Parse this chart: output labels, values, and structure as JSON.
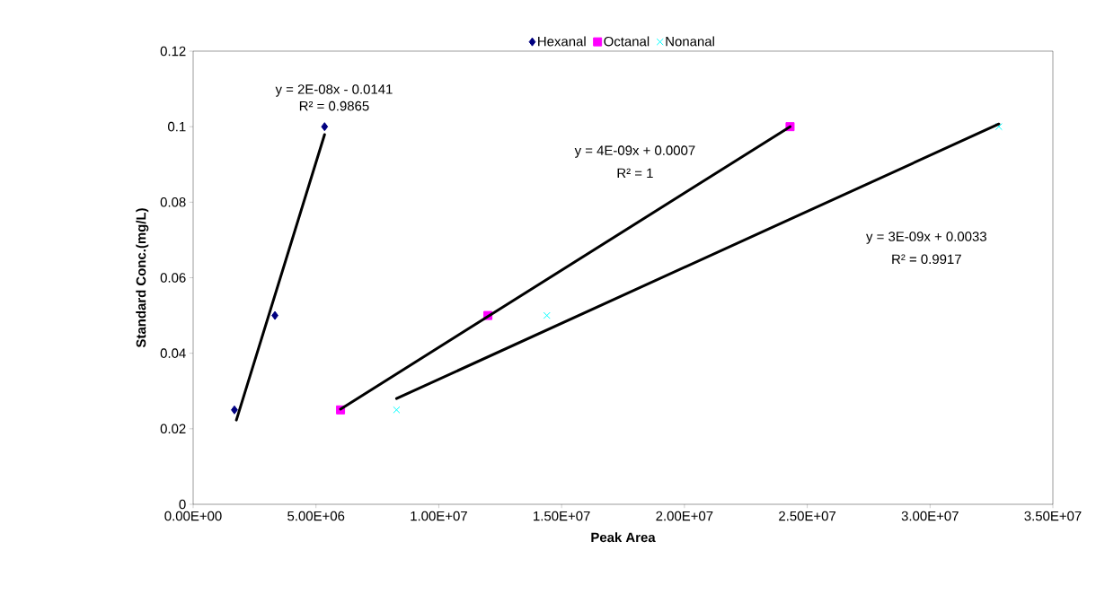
{
  "chart_data": {
    "type": "scatter",
    "xlabel": "Peak Area",
    "ylabel": "Standard  Conc.(mg/L)",
    "xlim": [
      0,
      35000000
    ],
    "ylim": [
      0,
      0.12
    ],
    "xticks": [
      {
        "value": 0,
        "label": "0.00E+00"
      },
      {
        "value": 5000000,
        "label": "5.00E+06"
      },
      {
        "value": 10000000,
        "label": "1.00E+07"
      },
      {
        "value": 15000000,
        "label": "1.50E+07"
      },
      {
        "value": 20000000,
        "label": "2.00E+07"
      },
      {
        "value": 25000000,
        "label": "2.50E+07"
      },
      {
        "value": 30000000,
        "label": "3.00E+07"
      },
      {
        "value": 35000000,
        "label": "3.50E+07"
      }
    ],
    "yticks": [
      0,
      0.02,
      0.04,
      0.06,
      0.08,
      0.1,
      0.12
    ],
    "legend": "top",
    "grid": false,
    "series": [
      {
        "name": "Hexanal",
        "marker": "diamond",
        "color": "#000080",
        "x": [
          1680000,
          3330000,
          5350000
        ],
        "values": [
          0.025,
          0.05,
          0.1
        ]
      },
      {
        "name": "Octanal",
        "marker": "square",
        "color": "#ff00ff",
        "x": [
          6000000,
          12000000,
          24300000
        ],
        "values": [
          0.025,
          0.05,
          0.1
        ]
      },
      {
        "name": "Nonanal",
        "marker": "cross",
        "color": "#00ffff",
        "x": [
          8280000,
          14400000,
          32800000
        ],
        "values": [
          0.025,
          0.05,
          0.1
        ]
      },
      {
        "type": "line",
        "color": "#000000",
        "x": [
          1760000,
          5350000
        ],
        "values": [
          0.0223,
          0.0979
        ]
      },
      {
        "type": "line",
        "color": "#000000",
        "x": [
          6000000,
          24300000
        ],
        "values": [
          0.0252,
          0.1
        ]
      },
      {
        "type": "line",
        "color": "#000000",
        "x": [
          8280000,
          32800000
        ],
        "values": [
          0.028,
          0.1007
        ]
      }
    ],
    "annotations": [
      "y = 2E-08x - 0.0141",
      "R² = 0.9865",
      "y = 4E-09x + 0.0007",
      "R² = 1",
      "y = 3E-09x + 0.0033",
      "R² = 0.9917"
    ]
  }
}
